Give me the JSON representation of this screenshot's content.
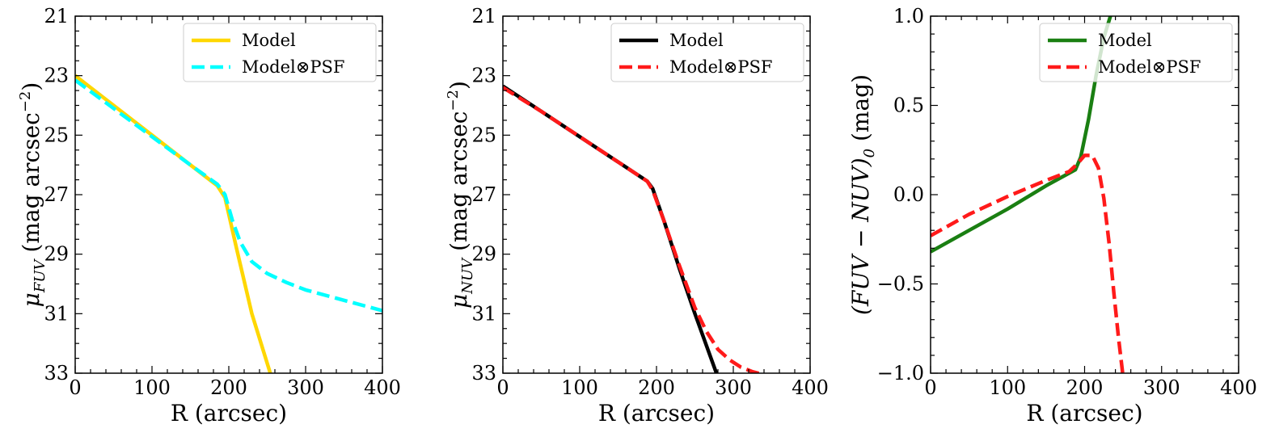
{
  "chart_data": [
    {
      "type": "line",
      "xlabel": "R (arcsec)",
      "ylabel_main": "μ",
      "ylabel_sub": "FUV",
      "ylabel_rest": " (mag arcsec",
      "ylabel_sup": "−2",
      "ylabel_end": ")",
      "xlim": [
        0,
        400
      ],
      "ylim": [
        33,
        21
      ],
      "y_inverted": true,
      "xticks": [
        0,
        100,
        200,
        300,
        400
      ],
      "xtick_labels": [
        "0",
        "100",
        "200",
        "300",
        "400"
      ],
      "yticks": [
        21,
        23,
        25,
        27,
        29,
        31,
        33
      ],
      "ytick_labels": [
        "21",
        "23",
        "25",
        "27",
        "29",
        "31",
        "33"
      ],
      "legend_position": "top-right",
      "series": [
        {
          "name": "Model",
          "color": "#FFD700",
          "dash": "solid",
          "x": [
            0,
            50,
            100,
            150,
            185,
            195,
            210,
            230,
            254
          ],
          "y": [
            23.0,
            24.0,
            25.0,
            26.0,
            26.7,
            27.1,
            28.8,
            31.0,
            33.0
          ]
        },
        {
          "name": "Model⊗PSF",
          "color": "#00FFFF",
          "dash": "dashed",
          "x": [
            0,
            50,
            100,
            150,
            185,
            195,
            205,
            215,
            230,
            250,
            275,
            300,
            350,
            400
          ],
          "y": [
            23.15,
            24.1,
            25.05,
            26.0,
            26.65,
            27.0,
            27.9,
            28.6,
            29.25,
            29.65,
            29.95,
            30.2,
            30.55,
            30.9
          ]
        }
      ]
    },
    {
      "type": "line",
      "xlabel": "R (arcsec)",
      "ylabel_main": "μ",
      "ylabel_sub": "NUV",
      "ylabel_rest": " (mag arcsec",
      "ylabel_sup": "−2",
      "ylabel_end": ")",
      "xlim": [
        0,
        400
      ],
      "ylim": [
        33,
        21
      ],
      "y_inverted": true,
      "xticks": [
        0,
        100,
        200,
        300,
        400
      ],
      "xtick_labels": [
        "0",
        "100",
        "200",
        "300",
        "400"
      ],
      "yticks": [
        21,
        23,
        25,
        27,
        29,
        31,
        33
      ],
      "ytick_labels": [
        "21",
        "23",
        "25",
        "27",
        "29",
        "31",
        "33"
      ],
      "legend_position": "top-right",
      "series": [
        {
          "name": "Model",
          "color": "#000000",
          "dash": "solid",
          "x": [
            0,
            50,
            100,
            150,
            188,
            195,
            210,
            230,
            250,
            278
          ],
          "y": [
            23.35,
            24.2,
            25.05,
            25.9,
            26.55,
            26.8,
            27.9,
            29.5,
            31.0,
            33.0
          ]
        },
        {
          "name": "Model⊗PSF",
          "color": "#FF1A1A",
          "dash": "dashed",
          "x": [
            0,
            50,
            100,
            150,
            188,
            195,
            210,
            230,
            250,
            265,
            280,
            295,
            310,
            325,
            340
          ],
          "y": [
            23.4,
            24.2,
            25.05,
            25.9,
            26.55,
            26.85,
            27.9,
            29.4,
            30.8,
            31.6,
            32.2,
            32.55,
            32.8,
            32.95,
            33.05
          ]
        }
      ]
    },
    {
      "type": "line",
      "xlabel": "R (arcsec)",
      "ylabel_main": "(FUV − NUV)",
      "ylabel_sub": "0",
      "ylabel_rest": " (mag)",
      "ylabel_sup": "",
      "ylabel_end": "",
      "xlim": [
        0,
        400
      ],
      "ylim": [
        -1.0,
        1.0
      ],
      "y_inverted": false,
      "xticks": [
        0,
        100,
        200,
        300,
        400
      ],
      "xtick_labels": [
        "0",
        "100",
        "200",
        "300",
        "400"
      ],
      "yticks": [
        -1.0,
        -0.5,
        0.0,
        0.5,
        1.0
      ],
      "ytick_labels": [
        "−1.0",
        "−0.5",
        "0.0",
        "0.5",
        "1.0"
      ],
      "legend_position": "top-right",
      "series": [
        {
          "name": "Model",
          "color": "#1A7F12",
          "dash": "solid",
          "x": [
            0,
            50,
            100,
            150,
            188,
            195,
            205,
            215,
            225,
            235
          ],
          "y": [
            -0.32,
            -0.2,
            -0.08,
            0.05,
            0.14,
            0.21,
            0.42,
            0.67,
            0.88,
            1.02
          ]
        },
        {
          "name": "Model⊗PSF",
          "color": "#FF1A1A",
          "dash": "dashed",
          "x": [
            0,
            50,
            100,
            150,
            180,
            190,
            200,
            210,
            218,
            225,
            232,
            238,
            244,
            250
          ],
          "y": [
            -0.23,
            -0.11,
            -0.01,
            0.08,
            0.13,
            0.17,
            0.22,
            0.22,
            0.15,
            -0.02,
            -0.28,
            -0.55,
            -0.8,
            -1.02
          ]
        }
      ]
    }
  ]
}
